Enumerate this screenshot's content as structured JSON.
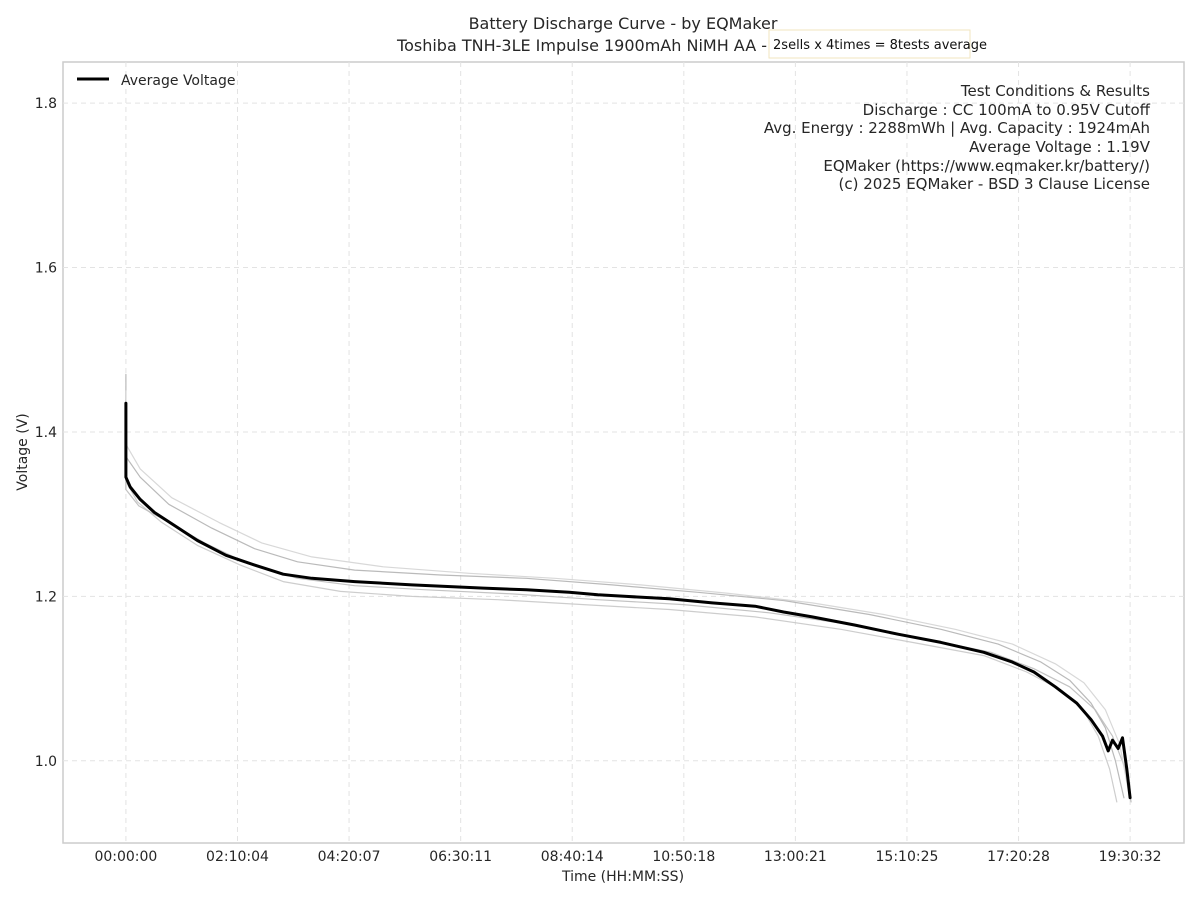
{
  "chart_data": {
    "type": "line",
    "title": "Battery Discharge Curve - by EQMaker",
    "subtitle": "Toshiba TNH-3LE Impulse 1900mAh NiMH AA -",
    "note": "2sells x 4times = 8tests average",
    "xlabel": "Time (HH:MM:SS)",
    "ylabel": "Voltage (V)",
    "xlim_seconds": [
      -4400,
      74000
    ],
    "ylim": [
      0.9,
      1.85
    ],
    "x_ticks": [
      {
        "seconds": 0,
        "label": "00:00:00"
      },
      {
        "seconds": 7804,
        "label": "02:10:04"
      },
      {
        "seconds": 15607,
        "label": "04:20:07"
      },
      {
        "seconds": 23411,
        "label": "06:30:11"
      },
      {
        "seconds": 31214,
        "label": "08:40:14"
      },
      {
        "seconds": 39018,
        "label": "10:50:18"
      },
      {
        "seconds": 46821,
        "label": "13:00:21"
      },
      {
        "seconds": 54625,
        "label": "15:10:25"
      },
      {
        "seconds": 62428,
        "label": "17:20:28"
      },
      {
        "seconds": 70232,
        "label": "19:30:32"
      }
    ],
    "y_ticks": [
      {
        "value": 1.0,
        "label": "1.0"
      },
      {
        "value": 1.2,
        "label": "1.2"
      },
      {
        "value": 1.4,
        "label": "1.4"
      },
      {
        "value": 1.6,
        "label": "1.6"
      },
      {
        "value": 1.8,
        "label": "1.8"
      }
    ],
    "grid": true,
    "legend": {
      "position": "top-left",
      "entries": [
        "Average Voltage"
      ]
    },
    "info_lines": [
      "Test Conditions & Results",
      "Discharge : CC 100mA to 0.95V Cutoff",
      "Avg. Energy : 2288mWh | Avg. Capacity : 1924mAh",
      "Average Voltage : 1.19V",
      "EQMaker (https://www.eqmaker.kr/battery/)",
      "(c) 2025 EQMaker - BSD 3 Clause License"
    ],
    "series": [
      {
        "name": "Average Voltage",
        "color": "#000000",
        "x": [
          0,
          0,
          0,
          300,
          1000,
          2000,
          3500,
          5000,
          7000,
          9000,
          11000,
          13000,
          16000,
          20000,
          25000,
          28000,
          31000,
          33000,
          35000,
          38000,
          41000,
          44000,
          46000,
          48000,
          51000,
          54000,
          57000,
          60000,
          62000,
          63500,
          65000,
          66500,
          67500,
          68300,
          68700,
          69000,
          69400,
          69700,
          70000,
          70232
        ],
        "y": [
          1.35,
          1.435,
          1.345,
          1.333,
          1.318,
          1.302,
          1.285,
          1.268,
          1.25,
          1.238,
          1.227,
          1.222,
          1.218,
          1.214,
          1.21,
          1.208,
          1.205,
          1.202,
          1.2,
          1.197,
          1.192,
          1.188,
          1.181,
          1.175,
          1.165,
          1.154,
          1.144,
          1.132,
          1.12,
          1.108,
          1.09,
          1.07,
          1.05,
          1.03,
          1.012,
          1.025,
          1.015,
          1.028,
          0.99,
          0.955
        ]
      },
      {
        "name": "",
        "color": "#b3b3b3",
        "x": [
          0,
          0,
          0,
          1000,
          3000,
          6000,
          9000,
          12000,
          16000,
          22000,
          28000,
          34000,
          40000,
          46000,
          52000,
          57000,
          61000,
          64000,
          66000,
          67500,
          68500,
          69200,
          69800
        ],
        "y": [
          1.34,
          1.47,
          1.37,
          1.345,
          1.312,
          1.283,
          1.258,
          1.242,
          1.232,
          1.226,
          1.222,
          1.214,
          1.205,
          1.195,
          1.178,
          1.16,
          1.142,
          1.12,
          1.098,
          1.07,
          1.04,
          1.0,
          0.955
        ]
      },
      {
        "name": "",
        "color": "#c8c8c8",
        "x": [
          0,
          0,
          0,
          800,
          2500,
          5000,
          8000,
          11000,
          15000,
          20000,
          26000,
          32000,
          38000,
          44000,
          50000,
          55000,
          60000,
          63000,
          65500,
          67000,
          68000,
          68800,
          69300
        ],
        "y": [
          1.33,
          1.44,
          1.34,
          1.315,
          1.29,
          1.262,
          1.238,
          1.218,
          1.206,
          1.2,
          1.196,
          1.19,
          1.184,
          1.175,
          1.16,
          1.144,
          1.128,
          1.108,
          1.085,
          1.06,
          1.03,
          0.99,
          0.95
        ]
      },
      {
        "name": "",
        "color": "#bdbdbd",
        "x": [
          0,
          0,
          0,
          900,
          2800,
          5500,
          8500,
          12000,
          16000,
          21000,
          27000,
          33000,
          39000,
          45000,
          51000,
          56000,
          60500,
          63500,
          66000,
          67800,
          69000,
          69900,
          70300
        ],
        "y": [
          1.33,
          1.43,
          1.33,
          1.31,
          1.292,
          1.265,
          1.24,
          1.222,
          1.213,
          1.208,
          1.203,
          1.196,
          1.19,
          1.18,
          1.165,
          1.148,
          1.132,
          1.112,
          1.09,
          1.062,
          1.03,
          0.99,
          0.95
        ]
      },
      {
        "name": "",
        "color": "#d4d4d4",
        "x": [
          0,
          0,
          0,
          1000,
          3200,
          6500,
          9500,
          13000,
          18000,
          24000,
          30000,
          36000,
          42000,
          48000,
          53000,
          58000,
          62000,
          65000,
          67000,
          68500,
          69500,
          70200
        ],
        "y": [
          1.35,
          1.45,
          1.385,
          1.355,
          1.32,
          1.29,
          1.265,
          1.248,
          1.236,
          1.228,
          1.222,
          1.214,
          1.204,
          1.192,
          1.178,
          1.16,
          1.142,
          1.118,
          1.095,
          1.062,
          1.02,
          0.955
        ]
      }
    ]
  }
}
